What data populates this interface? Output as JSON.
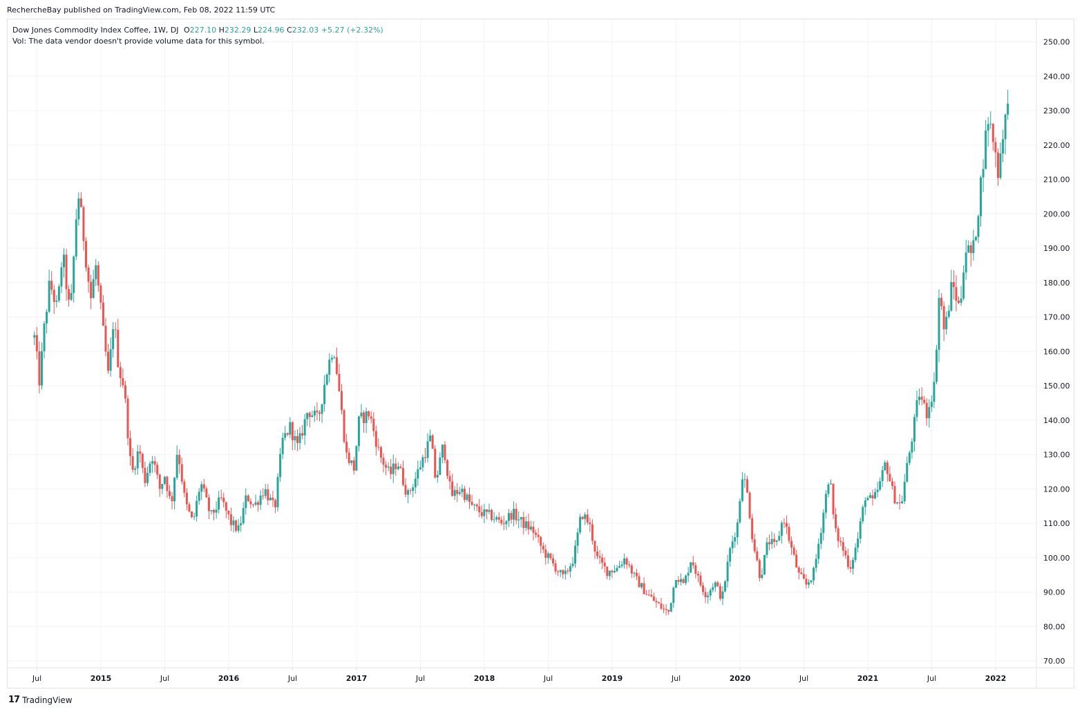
{
  "publisher": {
    "text": "RechercheBay published on TradingView.com, Feb 08, 2022 11:59 UTC"
  },
  "legend": {
    "symbol": "Dow Jones Commodity Index Coffee, 1W, DJ",
    "open_label": "O",
    "open_value": "227.10",
    "high_label": "H",
    "high_value": "232.29",
    "low_label": "L",
    "low_value": "224.96",
    "close_label": "C",
    "close_value": "232.03",
    "change": "+5.27 (+2.32%)",
    "volume_note": "Vol: The data vendor doesn't provide volume data for this symbol."
  },
  "branding": {
    "logo": "17",
    "name": "TradingView"
  },
  "colors": {
    "up": "#26a69a",
    "down": "#ef5350",
    "grid": "#f0f3fa",
    "text": "#131722",
    "border": "#e0e3eb"
  },
  "chart_data": {
    "type": "candlestick",
    "interval": "1W",
    "ylim": [
      66,
      254
    ],
    "y_ticks": [
      "70.00",
      "80.00",
      "90.00",
      "100.00",
      "110.00",
      "120.00",
      "130.00",
      "140.00",
      "150.00",
      "160.00",
      "170.00",
      "180.00",
      "190.00",
      "200.00",
      "210.00",
      "220.00",
      "230.00",
      "240.00",
      "250.00"
    ],
    "x_ticks": [
      {
        "label": "Jul",
        "t": 2014.5,
        "bold": false
      },
      {
        "label": "2015",
        "t": 2015.0,
        "bold": true
      },
      {
        "label": "Jul",
        "t": 2015.5,
        "bold": false
      },
      {
        "label": "2016",
        "t": 2016.0,
        "bold": true
      },
      {
        "label": "Jul",
        "t": 2016.5,
        "bold": false
      },
      {
        "label": "2017",
        "t": 2017.0,
        "bold": true
      },
      {
        "label": "Jul",
        "t": 2017.5,
        "bold": false
      },
      {
        "label": "2018",
        "t": 2018.0,
        "bold": true
      },
      {
        "label": "Jul",
        "t": 2018.5,
        "bold": false
      },
      {
        "label": "2019",
        "t": 2019.0,
        "bold": true
      },
      {
        "label": "Jul",
        "t": 2019.5,
        "bold": false
      },
      {
        "label": "2020",
        "t": 2020.0,
        "bold": true
      },
      {
        "label": "Jul",
        "t": 2020.5,
        "bold": false
      },
      {
        "label": "2021",
        "t": 2021.0,
        "bold": true
      },
      {
        "label": "Jul",
        "t": 2021.5,
        "bold": false
      },
      {
        "label": "2022",
        "t": 2022.0,
        "bold": true
      }
    ],
    "x_range": [
      2014.48,
      2022.1
    ],
    "close_path": [
      [
        2014.48,
        164
      ],
      [
        2014.52,
        151
      ],
      [
        2014.56,
        168
      ],
      [
        2014.6,
        180
      ],
      [
        2014.66,
        172
      ],
      [
        2014.7,
        189
      ],
      [
        2014.76,
        170
      ],
      [
        2014.82,
        207
      ],
      [
        2014.86,
        195
      ],
      [
        2014.92,
        175
      ],
      [
        2014.96,
        185
      ],
      [
        2015.02,
        165
      ],
      [
        2015.06,
        152
      ],
      [
        2015.1,
        170
      ],
      [
        2015.14,
        155
      ],
      [
        2015.18,
        150
      ],
      [
        2015.24,
        124
      ],
      [
        2015.3,
        132
      ],
      [
        2015.34,
        122
      ],
      [
        2015.4,
        130
      ],
      [
        2015.46,
        120
      ],
      [
        2015.5,
        124
      ],
      [
        2015.55,
        115
      ],
      [
        2015.6,
        132
      ],
      [
        2015.66,
        116
      ],
      [
        2015.72,
        110
      ],
      [
        2015.78,
        122
      ],
      [
        2015.86,
        112
      ],
      [
        2015.94,
        117
      ],
      [
        2016.02,
        110
      ],
      [
        2016.08,
        108
      ],
      [
        2016.14,
        118
      ],
      [
        2016.2,
        115
      ],
      [
        2016.28,
        120
      ],
      [
        2016.36,
        114
      ],
      [
        2016.42,
        134
      ],
      [
        2016.48,
        138
      ],
      [
        2016.54,
        132
      ],
      [
        2016.62,
        143
      ],
      [
        2016.7,
        140
      ],
      [
        2016.76,
        153
      ],
      [
        2016.82,
        162
      ],
      [
        2016.86,
        150
      ],
      [
        2016.92,
        130
      ],
      [
        2016.98,
        126
      ],
      [
        2017.02,
        140
      ],
      [
        2017.1,
        142
      ],
      [
        2017.18,
        130
      ],
      [
        2017.26,
        124
      ],
      [
        2017.32,
        128
      ],
      [
        2017.4,
        118
      ],
      [
        2017.46,
        123
      ],
      [
        2017.52,
        129
      ],
      [
        2017.58,
        135
      ],
      [
        2017.62,
        122
      ],
      [
        2017.68,
        133
      ],
      [
        2017.74,
        118
      ],
      [
        2017.82,
        120
      ],
      [
        2017.9,
        115
      ],
      [
        2017.98,
        113
      ],
      [
        2018.06,
        112
      ],
      [
        2018.14,
        110
      ],
      [
        2018.22,
        113
      ],
      [
        2018.3,
        110
      ],
      [
        2018.38,
        108
      ],
      [
        2018.46,
        102
      ],
      [
        2018.54,
        98
      ],
      [
        2018.62,
        94
      ],
      [
        2018.7,
        100
      ],
      [
        2018.76,
        113
      ],
      [
        2018.82,
        110
      ],
      [
        2018.88,
        100
      ],
      [
        2018.96,
        96
      ],
      [
        2019.04,
        97
      ],
      [
        2019.1,
        100
      ],
      [
        2019.18,
        94
      ],
      [
        2019.26,
        90
      ],
      [
        2019.34,
        87
      ],
      [
        2019.4,
        85
      ],
      [
        2019.44,
        84
      ],
      [
        2019.5,
        95
      ],
      [
        2019.56,
        92
      ],
      [
        2019.62,
        100
      ],
      [
        2019.68,
        93
      ],
      [
        2019.74,
        89
      ],
      [
        2019.8,
        93
      ],
      [
        2019.86,
        88
      ],
      [
        2019.92,
        102
      ],
      [
        2019.98,
        110
      ],
      [
        2020.02,
        125
      ],
      [
        2020.06,
        118
      ],
      [
        2020.1,
        105
      ],
      [
        2020.16,
        94
      ],
      [
        2020.22,
        105
      ],
      [
        2020.28,
        103
      ],
      [
        2020.34,
        112
      ],
      [
        2020.4,
        103
      ],
      [
        2020.46,
        95
      ],
      [
        2020.52,
        92
      ],
      [
        2020.58,
        96
      ],
      [
        2020.64,
        110
      ],
      [
        2020.7,
        125
      ],
      [
        2020.74,
        108
      ],
      [
        2020.8,
        103
      ],
      [
        2020.86,
        97
      ],
      [
        2020.92,
        105
      ],
      [
        2020.98,
        118
      ],
      [
        2021.04,
        116
      ],
      [
        2021.1,
        122
      ],
      [
        2021.14,
        128
      ],
      [
        2021.2,
        118
      ],
      [
        2021.26,
        115
      ],
      [
        2021.3,
        125
      ],
      [
        2021.36,
        138
      ],
      [
        2021.4,
        148
      ],
      [
        2021.46,
        142
      ],
      [
        2021.52,
        150
      ],
      [
        2021.56,
        178
      ],
      [
        2021.6,
        165
      ],
      [
        2021.66,
        180
      ],
      [
        2021.72,
        172
      ],
      [
        2021.76,
        190
      ],
      [
        2021.82,
        188
      ],
      [
        2021.86,
        200
      ],
      [
        2021.9,
        215
      ],
      [
        2021.94,
        228
      ],
      [
        2021.98,
        222
      ],
      [
        2022.02,
        212
      ],
      [
        2022.06,
        225
      ],
      [
        2022.1,
        232
      ]
    ]
  }
}
